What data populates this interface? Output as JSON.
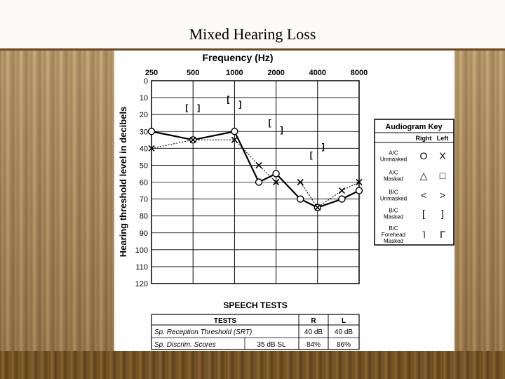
{
  "title": "Mixed Hearing Loss",
  "chart_data": {
    "type": "line",
    "title": "",
    "xlabel": "Frequency (Hz)",
    "ylabel": "Hearing threshold level in decibels",
    "x_ticks": [
      "250",
      "500",
      "1000",
      "2000",
      "4000",
      "8000"
    ],
    "y_ticks": [
      "0",
      "10",
      "20",
      "30",
      "40",
      "50",
      "60",
      "70",
      "80",
      "90",
      "100",
      "110",
      "120"
    ],
    "ylim": [
      0,
      120
    ],
    "y_inverted": true,
    "series": [
      {
        "marker": "O",
        "style": "solid",
        "points": [
          [
            250,
            30
          ],
          [
            500,
            35
          ],
          [
            1000,
            30
          ],
          [
            1500,
            60
          ],
          [
            2000,
            55
          ],
          [
            3000,
            70
          ],
          [
            4000,
            75
          ],
          [
            6000,
            70
          ],
          [
            8000,
            65
          ]
        ]
      },
      {
        "marker": "X",
        "style": "dotted",
        "points": [
          [
            250,
            40
          ],
          [
            500,
            35
          ],
          [
            1000,
            35
          ],
          [
            1500,
            50
          ],
          [
            2000,
            60
          ],
          [
            3000,
            60
          ],
          [
            4000,
            75
          ],
          [
            6000,
            65
          ],
          [
            8000,
            60
          ]
        ]
      }
    ],
    "masked_bc": [
      {
        "freq": 500,
        "db": 16,
        "side": "right",
        "glyph": "["
      },
      {
        "freq": 500,
        "db": 16,
        "side": "left",
        "glyph": "]"
      },
      {
        "freq": 1000,
        "db": 11,
        "side": "right",
        "glyph": "["
      },
      {
        "freq": 1000,
        "db": 14,
        "side": "left",
        "glyph": "]"
      },
      {
        "freq": 2000,
        "db": 25,
        "side": "right",
        "glyph": "["
      },
      {
        "freq": 2000,
        "db": 29,
        "side": "left",
        "glyph": "]"
      },
      {
        "freq": 4000,
        "db": 44,
        "side": "right",
        "glyph": "["
      },
      {
        "freq": 4000,
        "db": 39,
        "side": "left",
        "glyph": "]"
      }
    ]
  },
  "legend": {
    "title": "Audiogram Key",
    "col_right": "Right",
    "col_left": "Left",
    "rows": [
      {
        "label_lines": [
          "A/C",
          "Unmasked"
        ],
        "right": "O",
        "left": "X"
      },
      {
        "label_lines": [
          "A/C",
          "Masked"
        ],
        "right": "△",
        "left": "□"
      },
      {
        "label_lines": [
          "B/C",
          "Unmasked"
        ],
        "right": "<",
        "left": ">"
      },
      {
        "label_lines": [
          "B/C",
          "Masked"
        ],
        "right": "[",
        "left": "]"
      },
      {
        "label_lines": [
          "B/C",
          "Forehead",
          "Masked"
        ],
        "right": "˥",
        "left": "Γ"
      }
    ]
  },
  "speech_tests": {
    "title": "SPEECH TESTS",
    "headers": [
      "TESTS",
      "R",
      "L"
    ],
    "rows": [
      {
        "test": "Sp. Reception Threshold (SRT)",
        "extra": "",
        "r": "40 dB",
        "l": "40 dB"
      },
      {
        "test": "Sp. Discrim. Scores",
        "extra": "35 dB SL",
        "r": "84%",
        "l": "86%"
      }
    ]
  }
}
